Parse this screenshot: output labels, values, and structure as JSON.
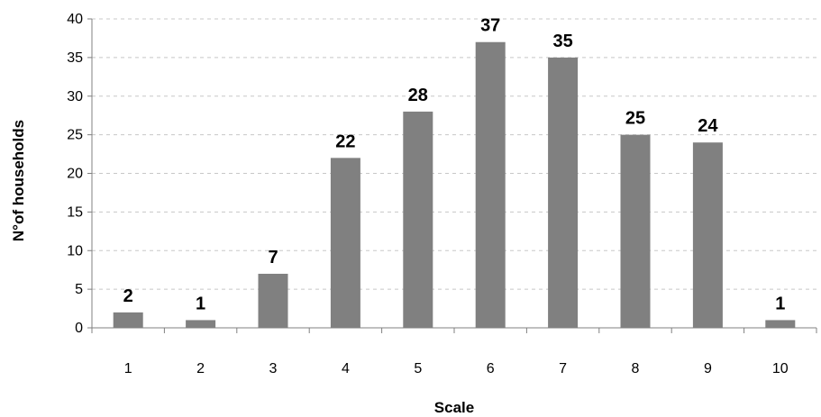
{
  "chart_data": {
    "type": "bar",
    "title": "",
    "xlabel": "Scale",
    "ylabel": "N°of households",
    "categories": [
      "1",
      "2",
      "3",
      "4",
      "5",
      "6",
      "7",
      "8",
      "9",
      "10"
    ],
    "values": [
      2,
      1,
      7,
      22,
      28,
      37,
      35,
      25,
      24,
      1
    ],
    "ylim": [
      0,
      40
    ],
    "yticks": [
      0,
      5,
      10,
      15,
      20,
      25,
      30,
      35,
      40
    ],
    "grid": "horizontal-dashed",
    "data_labels": true,
    "bar_color": "#808080",
    "legend": "none"
  }
}
